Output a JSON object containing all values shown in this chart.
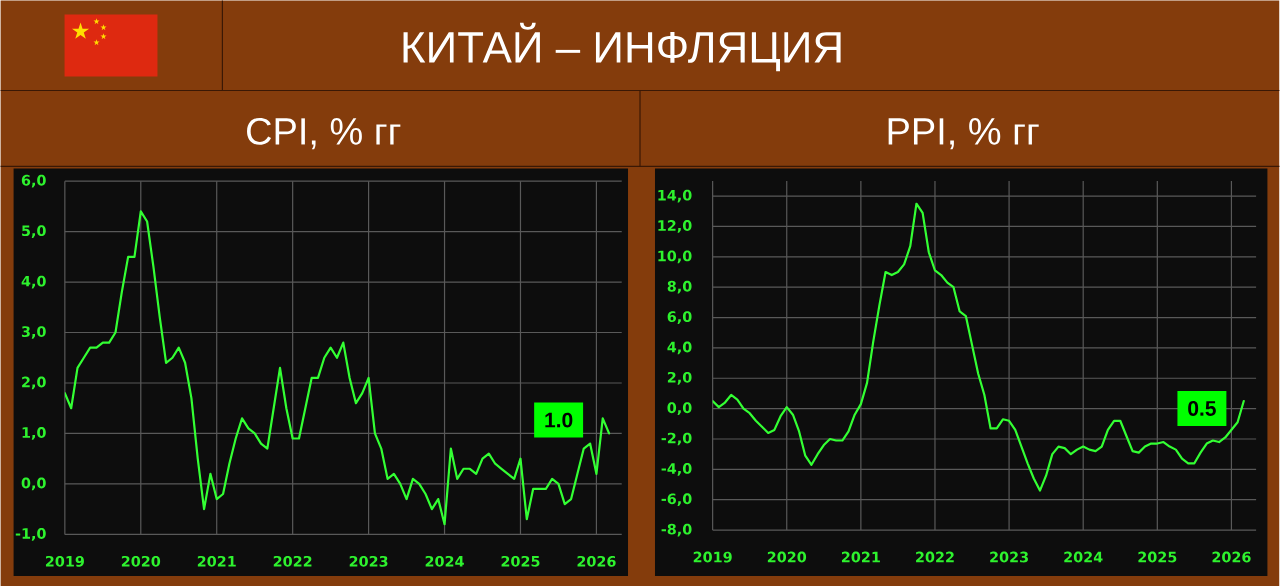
{
  "chart_data": [
    {
      "type": "other",
      "title": "КИТАЙ – ИНФЛЯЦИЯ"
    },
    {
      "type": "line",
      "title": "CPI, % гг",
      "x": [
        "2019-01",
        "2019-02",
        "2019-03",
        "2019-04",
        "2019-05",
        "2019-06",
        "2019-07",
        "2019-08",
        "2019-09",
        "2019-10",
        "2019-11",
        "2019-12",
        "2020-01",
        "2020-02",
        "2020-03",
        "2020-04",
        "2020-05",
        "2020-06",
        "2020-07",
        "2020-08",
        "2020-09",
        "2020-10",
        "2020-11",
        "2020-12",
        "2021-01",
        "2021-02",
        "2021-03",
        "2021-04",
        "2021-05",
        "2021-06",
        "2021-07",
        "2021-08",
        "2021-09",
        "2021-10",
        "2021-11",
        "2021-12",
        "2022-01",
        "2022-02",
        "2022-03",
        "2022-04",
        "2022-05",
        "2022-06",
        "2022-07",
        "2022-08",
        "2022-09",
        "2022-10",
        "2022-11",
        "2022-12",
        "2023-01",
        "2023-02",
        "2023-03",
        "2023-04",
        "2023-05",
        "2023-06",
        "2023-07",
        "2023-08",
        "2023-09",
        "2023-10",
        "2023-11",
        "2023-12",
        "2024-01",
        "2024-02",
        "2024-03",
        "2024-04",
        "2024-05",
        "2024-06",
        "2024-07",
        "2024-08",
        "2024-09",
        "2024-10",
        "2024-11",
        "2024-12",
        "2025-01",
        "2025-02",
        "2025-03",
        "2025-04",
        "2025-05",
        "2025-06",
        "2025-07",
        "2025-08",
        "2025-09",
        "2025-10",
        "2025-11",
        "2025-12",
        "2026-01",
        "2026-02",
        "2026-03"
      ],
      "series": [
        {
          "color": "#33ff33",
          "values": [
            1.8,
            1.5,
            2.3,
            2.5,
            2.7,
            2.7,
            2.8,
            2.8,
            3.0,
            3.8,
            4.5,
            4.5,
            5.4,
            5.2,
            4.3,
            3.3,
            2.4,
            2.5,
            2.7,
            2.4,
            1.7,
            0.5,
            -0.5,
            0.2,
            -0.3,
            -0.2,
            0.4,
            0.9,
            1.3,
            1.1,
            1.0,
            0.8,
            0.7,
            1.5,
            2.3,
            1.5,
            0.9,
            0.9,
            1.5,
            2.1,
            2.1,
            2.5,
            2.7,
            2.5,
            2.8,
            2.1,
            1.6,
            1.8,
            2.1,
            1.0,
            0.7,
            0.1,
            0.2,
            0.0,
            -0.3,
            0.1,
            0.0,
            -0.2,
            -0.5,
            -0.3,
            -0.8,
            0.7,
            0.1,
            0.3,
            0.3,
            0.2,
            0.5,
            0.6,
            0.4,
            0.3,
            0.2,
            0.1,
            0.5,
            -0.7,
            -0.1,
            -0.1,
            -0.1,
            0.1,
            0.0,
            -0.4,
            -0.3,
            0.2,
            0.7,
            0.8,
            0.2,
            1.3,
            1.0
          ]
        }
      ],
      "xlim": [
        "2019-01",
        "2026-05"
      ],
      "xticks": [
        "2019",
        "2020",
        "2021",
        "2022",
        "2023",
        "2024",
        "2025",
        "2026"
      ],
      "ylim": [
        -1,
        6
      ],
      "yticks": [
        {
          "value": -1,
          "label": "-1,0"
        },
        {
          "value": 0,
          "label": "0,0"
        },
        {
          "value": 1,
          "label": "1,0"
        },
        {
          "value": 2,
          "label": "2,0"
        },
        {
          "value": 3,
          "label": "3,0"
        },
        {
          "value": 4,
          "label": "4,0"
        },
        {
          "value": 5,
          "label": "5,0"
        },
        {
          "value": 6,
          "label": "6,0"
        }
      ],
      "grid": true,
      "annotations": [
        {
          "text": "1.0",
          "x": "2026-03",
          "y": 1.0
        }
      ]
    },
    {
      "type": "line",
      "title": "PPI, % гг",
      "x": [
        "2019-01",
        "2019-02",
        "2019-03",
        "2019-04",
        "2019-05",
        "2019-06",
        "2019-07",
        "2019-08",
        "2019-09",
        "2019-10",
        "2019-11",
        "2019-12",
        "2020-01",
        "2020-02",
        "2020-03",
        "2020-04",
        "2020-05",
        "2020-06",
        "2020-07",
        "2020-08",
        "2020-09",
        "2020-10",
        "2020-11",
        "2020-12",
        "2021-01",
        "2021-02",
        "2021-03",
        "2021-04",
        "2021-05",
        "2021-06",
        "2021-07",
        "2021-08",
        "2021-09",
        "2021-10",
        "2021-11",
        "2021-12",
        "2022-01",
        "2022-02",
        "2022-03",
        "2022-04",
        "2022-05",
        "2022-06",
        "2022-07",
        "2022-08",
        "2022-09",
        "2022-10",
        "2022-11",
        "2022-12",
        "2023-01",
        "2023-02",
        "2023-03",
        "2023-04",
        "2023-05",
        "2023-06",
        "2023-07",
        "2023-08",
        "2023-09",
        "2023-10",
        "2023-11",
        "2023-12",
        "2024-01",
        "2024-02",
        "2024-03",
        "2024-04",
        "2024-05",
        "2024-06",
        "2024-07",
        "2024-08",
        "2024-09",
        "2024-10",
        "2024-11",
        "2024-12",
        "2025-01",
        "2025-02",
        "2025-03",
        "2025-04",
        "2025-05",
        "2025-06",
        "2025-07",
        "2025-08",
        "2025-09",
        "2025-10",
        "2025-11",
        "2025-12",
        "2026-01",
        "2026-02",
        "2026-03"
      ],
      "series": [
        {
          "color": "#33ff33",
          "values": [
            0.5,
            0.1,
            0.4,
            0.9,
            0.6,
            0.0,
            -0.3,
            -0.8,
            -1.2,
            -1.6,
            -1.4,
            -0.5,
            0.1,
            -0.4,
            -1.5,
            -3.1,
            -3.7,
            -3.0,
            -2.4,
            -2.0,
            -2.1,
            -2.1,
            -1.5,
            -0.4,
            0.3,
            1.7,
            4.4,
            6.8,
            9.0,
            8.8,
            9.0,
            9.5,
            10.7,
            13.5,
            12.9,
            10.3,
            9.1,
            8.8,
            8.3,
            8.0,
            6.4,
            6.1,
            4.2,
            2.3,
            0.9,
            -1.3,
            -1.3,
            -0.7,
            -0.8,
            -1.4,
            -2.5,
            -3.6,
            -4.6,
            -5.4,
            -4.4,
            -3.0,
            -2.5,
            -2.6,
            -3.0,
            -2.7,
            -2.5,
            -2.7,
            -2.8,
            -2.5,
            -1.4,
            -0.8,
            -0.8,
            -1.8,
            -2.8,
            -2.9,
            -2.5,
            -2.3,
            -2.3,
            -2.2,
            -2.5,
            -2.7,
            -3.3,
            -3.6,
            -3.6,
            -2.9,
            -2.3,
            -2.1,
            -2.2,
            -1.9,
            -1.4,
            -0.9,
            0.5
          ]
        }
      ],
      "xlim": [
        "2019-01",
        "2026-05"
      ],
      "xticks": [
        "2019",
        "2020",
        "2021",
        "2022",
        "2023",
        "2024",
        "2025",
        "2026"
      ],
      "ylim": [
        -8,
        15
      ],
      "yticks": [
        {
          "value": -8,
          "label": "-8,0"
        },
        {
          "value": -6,
          "label": "-6,0"
        },
        {
          "value": -4,
          "label": "-4,0"
        },
        {
          "value": -2,
          "label": "-2,0"
        },
        {
          "value": 0,
          "label": "0,0"
        },
        {
          "value": 2,
          "label": "2,0"
        },
        {
          "value": 4,
          "label": "4,0"
        },
        {
          "value": 6,
          "label": "6,0"
        },
        {
          "value": 8,
          "label": "8,0"
        },
        {
          "value": 10,
          "label": "10,0"
        },
        {
          "value": 12,
          "label": "12,0"
        },
        {
          "value": 14,
          "label": "14,0"
        }
      ],
      "grid": true,
      "annotations": [
        {
          "text": "0.5",
          "x": "2026-03",
          "y": 0.5
        }
      ]
    }
  ]
}
